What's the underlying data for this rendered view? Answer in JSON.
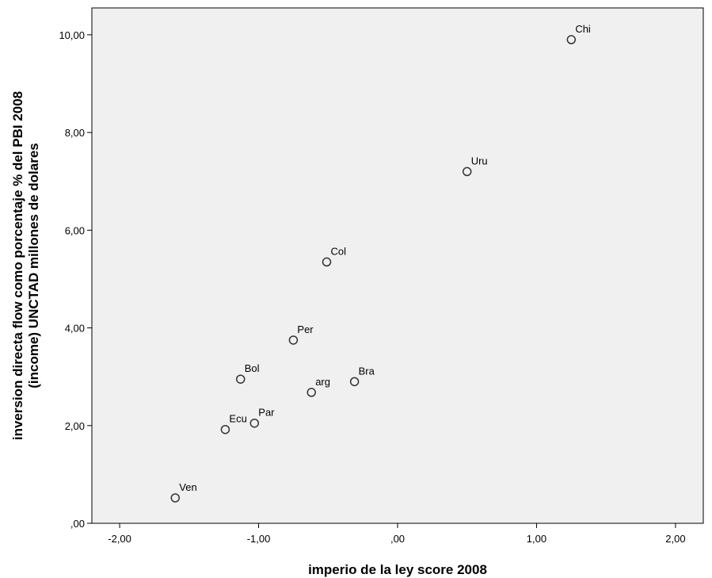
{
  "chart_data": {
    "type": "scatter",
    "xlabel": "imperio de la ley score 2008",
    "ylabel_lines": [
      "inversion directa flow como porcentaje % del PBI 2008",
      "(income) UNCTAD millones de dolares"
    ],
    "xlim": [
      -2.2,
      2.2
    ],
    "ylim": [
      0,
      10.55
    ],
    "x_ticks": [
      {
        "value": -2,
        "label": "-2,00"
      },
      {
        "value": -1,
        "label": "-1,00"
      },
      {
        "value": 0,
        "label": ",00"
      },
      {
        "value": 1,
        "label": "1,00"
      },
      {
        "value": 2,
        "label": "2,00"
      }
    ],
    "y_ticks": [
      {
        "value": 0,
        "label": ",00"
      },
      {
        "value": 2,
        "label": "2,00"
      },
      {
        "value": 4,
        "label": "4,00"
      },
      {
        "value": 6,
        "label": "6,00"
      },
      {
        "value": 8,
        "label": "8,00"
      },
      {
        "value": 10,
        "label": "10,00"
      }
    ],
    "points": [
      {
        "label": "Chi",
        "x": 1.25,
        "y": 9.9
      },
      {
        "label": "Uru",
        "x": 0.5,
        "y": 7.2
      },
      {
        "label": "Col",
        "x": -0.51,
        "y": 5.35
      },
      {
        "label": "Per",
        "x": -0.75,
        "y": 3.75
      },
      {
        "label": "Bol",
        "x": -1.13,
        "y": 2.95
      },
      {
        "label": "arg",
        "x": -0.62,
        "y": 2.68
      },
      {
        "label": "Bra",
        "x": -0.31,
        "y": 2.9
      },
      {
        "label": "Ecu",
        "x": -1.24,
        "y": 1.92
      },
      {
        "label": "Par",
        "x": -1.03,
        "y": 2.05
      },
      {
        "label": "Ven",
        "x": -1.6,
        "y": 0.52
      }
    ],
    "plot_background": "#f0f0f0",
    "marker_color": "#333333",
    "grid": false
  }
}
